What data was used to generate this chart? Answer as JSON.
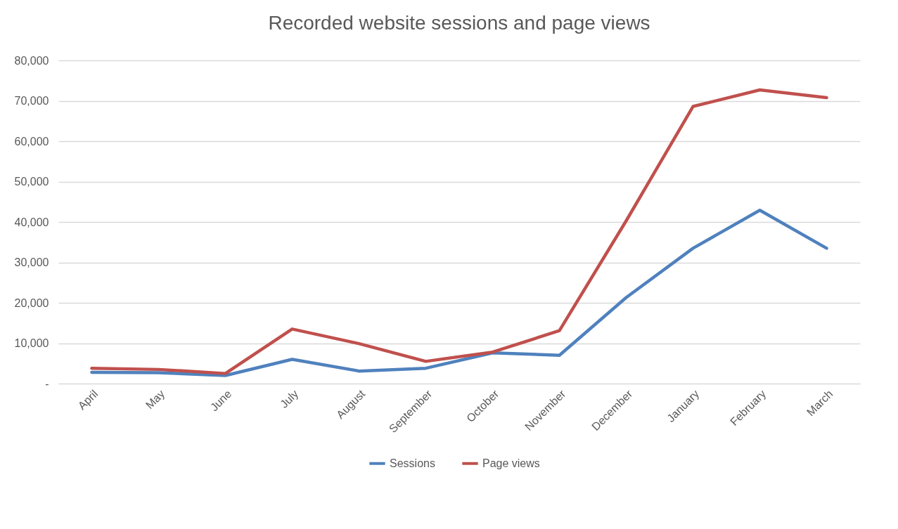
{
  "chart_data": {
    "type": "line",
    "title": "Recorded website sessions and page views",
    "categories": [
      "April",
      "May",
      "June",
      "July",
      "August",
      "September",
      "October",
      "November",
      "December",
      "January",
      "February",
      "March"
    ],
    "series": [
      {
        "name": "Sessions",
        "color": "#4f81bd",
        "values": [
          2800,
          2700,
          2000,
          6000,
          3100,
          3800,
          7600,
          7000,
          21300,
          33500,
          42900,
          33500
        ]
      },
      {
        "name": "Page views",
        "color": "#c0504d",
        "values": [
          3800,
          3500,
          2500,
          13500,
          9900,
          5500,
          7800,
          13100,
          40300,
          68600,
          72700,
          70800
        ]
      }
    ],
    "ylim": [
      0,
      80000
    ],
    "yticks": [
      {
        "value": 0,
        "label": "-"
      },
      {
        "value": 10000,
        "label": "10,000"
      },
      {
        "value": 20000,
        "label": "20,000"
      },
      {
        "value": 30000,
        "label": "30,000"
      },
      {
        "value": 40000,
        "label": "40,000"
      },
      {
        "value": 50000,
        "label": "50,000"
      },
      {
        "value": 60000,
        "label": "60,000"
      },
      {
        "value": 70000,
        "label": "70,000"
      },
      {
        "value": 80000,
        "label": "80,000"
      }
    ],
    "grid": "y",
    "legend": "bottom",
    "marker": "none",
    "line_style": "solid"
  }
}
